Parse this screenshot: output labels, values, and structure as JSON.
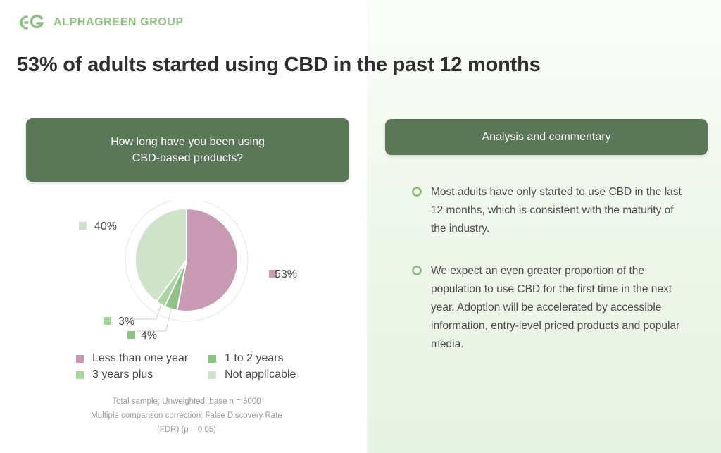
{
  "brand": {
    "name": "ALPHAGREEN GROUP",
    "logo_icon": "ag-monogram-icon",
    "color": "#8fc183"
  },
  "title": "53% of adults started using CBD in the past 12 months",
  "question_card": {
    "line1": "How long have you been using",
    "line2": "CBD-based products?"
  },
  "analysis_card": {
    "title": "Analysis and commentary"
  },
  "bullets": [
    "Most adults have only started to use CBD in the last 12 months, which is consistent with the maturity of the industry.",
    "We expect an even greater proportion of the population to use CBD for the first time in the next year. Adoption will be accelerated by accessible information, entry-level priced products and popular media."
  ],
  "notes": [
    "Total sample; Unweighted; base n = 5000",
    "Multiple comparison correction: False Discovery Rate",
    "(FDR) (p = 0.05)"
  ],
  "colors": {
    "header_bg": "#5a7857",
    "less_than_one_year": "#c99ab4",
    "one_to_two_years": "#8ec386",
    "three_years_plus": "#a9d69f",
    "not_applicable": "#cfe3cb"
  },
  "chart_data": {
    "type": "pie",
    "title": "How long have you been using CBD-based products?",
    "categories": [
      "Less than one year",
      "1 to 2 years",
      "3 years plus",
      "Not applicable"
    ],
    "values": [
      53,
      4,
      3,
      40
    ],
    "labels": [
      "53%",
      "4%",
      "3%",
      "40%"
    ],
    "legend_position": "bottom"
  }
}
